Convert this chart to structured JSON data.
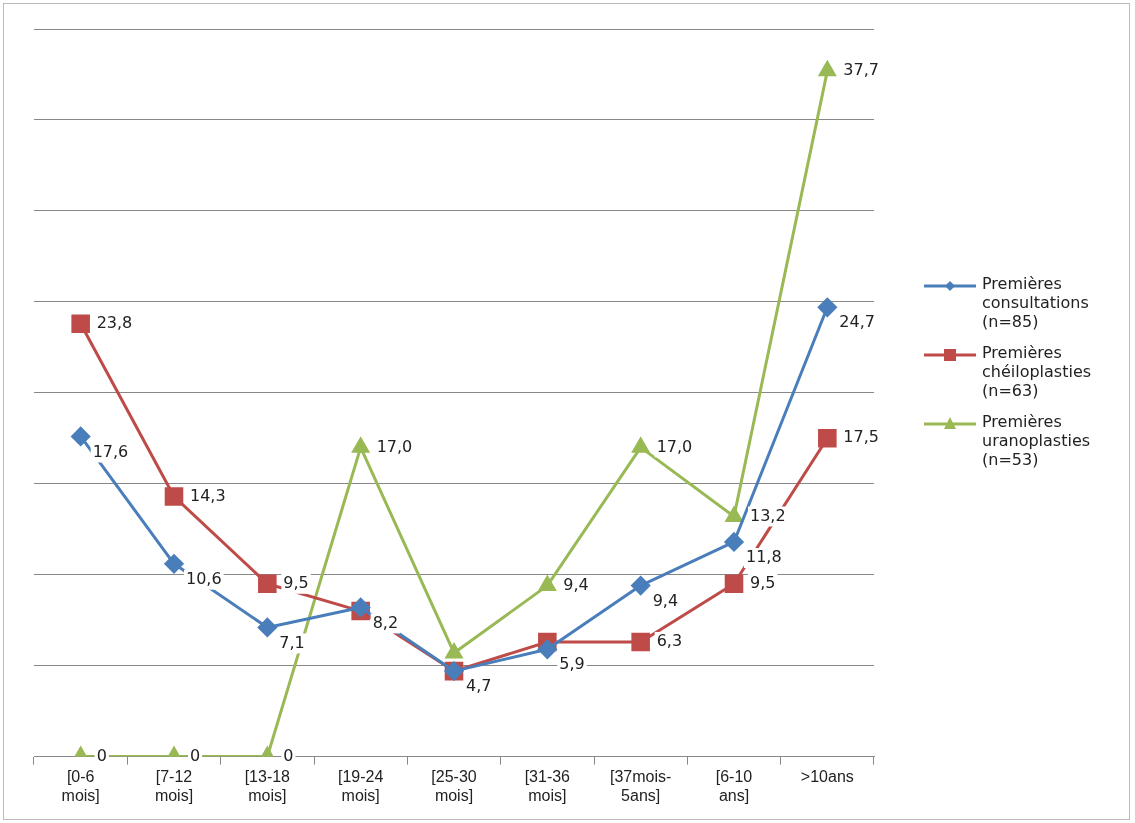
{
  "chart_data": {
    "type": "line",
    "categories": [
      "[0-6 mois]",
      "[7-12 mois]",
      "[13-18 mois]",
      "[19-24 mois]",
      "[25-30 mois]",
      "[31-36 mois]",
      "[37mois-5ans]",
      "[6-10 ans]",
      ">10ans"
    ],
    "series": [
      {
        "name": "Premières consultations (n=85)",
        "color": "#4a7ebb",
        "marker": "diamond",
        "values": [
          17.6,
          10.6,
          7.1,
          8.2,
          4.7,
          5.9,
          9.4,
          11.8,
          24.7
        ],
        "value_labels": [
          "17,6",
          "10,6",
          "7,1",
          "8,2",
          "4,7",
          "5,9",
          "9,4",
          "11,8",
          "24,7"
        ]
      },
      {
        "name": "Premières chéiloplasties (n=63)",
        "color": "#be4b48",
        "marker": "square",
        "values": [
          23.8,
          14.3,
          9.5,
          8.0,
          4.7,
          6.3,
          6.3,
          9.5,
          17.5
        ],
        "value_labels": [
          "23,8",
          "14,3",
          "9,5",
          null,
          null,
          null,
          "6,3",
          "9,5",
          "17,5"
        ]
      },
      {
        "name": "Premières uranoplasties (n=53)",
        "color": "#98b954",
        "marker": "triangle",
        "values": [
          0,
          0,
          0,
          17.0,
          5.7,
          9.4,
          17.0,
          13.2,
          37.7
        ],
        "value_labels": [
          "0",
          "0",
          "0",
          "17,0",
          null,
          "9,4",
          "17,0",
          "13,2",
          "37,7"
        ]
      }
    ],
    "ylim": [
      0,
      40
    ],
    "yticks": [
      {
        "value": 0,
        "label": null
      },
      {
        "value": 5,
        "label": null
      },
      {
        "value": 10,
        "label": null
      },
      {
        "value": 15,
        "label": null
      },
      {
        "value": 20,
        "label": null
      },
      {
        "value": 25,
        "label": null
      },
      {
        "value": 30,
        "label": null
      },
      {
        "value": 35,
        "label": null
      },
      {
        "value": 40,
        "label": null
      }
    ],
    "tick_labels": "x",
    "grid": "y",
    "legend": "right",
    "line_style": "solid"
  }
}
